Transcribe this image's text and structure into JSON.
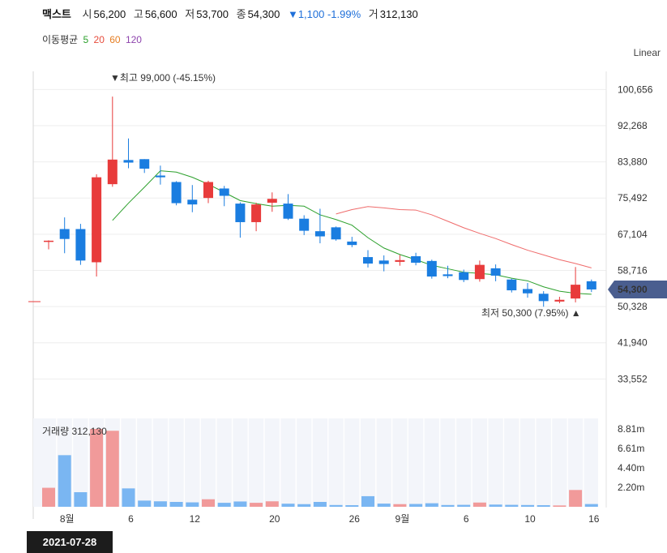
{
  "header": {
    "name": "맥스트",
    "open_label": "시",
    "open": "56,200",
    "high_label": "고",
    "high": "56,600",
    "low_label": "저",
    "low": "53,700",
    "close_label": "종",
    "close": "54,300",
    "change": "▼1,100 -1.99%",
    "volume_label": "거",
    "volume": "312,130"
  },
  "ma_legend": {
    "label": "이동평균",
    "items": [
      {
        "text": "5",
        "color": "#2ca02c"
      },
      {
        "text": "20",
        "color": "#e74c3c"
      },
      {
        "text": "60",
        "color": "#e67e22"
      },
      {
        "text": "120",
        "color": "#8e44ad"
      }
    ]
  },
  "scale_label": "Linear",
  "date_box": "2021-07-28",
  "colors": {
    "up": "#e83b3b",
    "down": "#1a7de0",
    "ma5": "#2ca02c",
    "ma20": "#ef6b6b",
    "vol_up": "#f19a9a",
    "vol_down": "#7ab6f2",
    "price_tag": "#4a5e8f"
  },
  "chart_data": {
    "type": "candlestick",
    "y_ticks": [
      "100,656",
      "92,268",
      "83,880",
      "75,492",
      "67,104",
      "58,716",
      "50,328",
      "41,940",
      "33,552"
    ],
    "y_range": [
      25164,
      104850
    ],
    "x_tick_labels": [
      "8월",
      "6",
      "12",
      "20",
      "26",
      "9월",
      "6",
      "10",
      "16"
    ],
    "x_tick_index": [
      1,
      5,
      9,
      14,
      19,
      22,
      26,
      30,
      34
    ],
    "current_price_label": "54,300",
    "current_price": 54300,
    "high_annotation": "▼최고 99,000 (-45.15%)",
    "low_annotation": "최저 50,300 (7.95%) ▲",
    "volume_title": "거래량",
    "volume_value": "312,130",
    "volume_ticks": [
      "8.81m",
      "6.61m",
      "4.40m",
      "2.20m"
    ],
    "volume_tick_values": [
      8.81,
      6.61,
      4.4,
      2.2
    ],
    "volume_max": 10.0,
    "candles": [
      {
        "o": 65600,
        "h": 65700,
        "l": 63600,
        "c": 65600,
        "v": 2.15
      },
      {
        "o": 68300,
        "h": 71000,
        "l": 62700,
        "c": 66000,
        "v": 5.84
      },
      {
        "o": 68300,
        "h": 69500,
        "l": 60000,
        "c": 61000,
        "v": 1.65
      },
      {
        "o": 60600,
        "h": 81000,
        "l": 57300,
        "c": 80300,
        "v": 8.81
      },
      {
        "o": 78700,
        "h": 99000,
        "l": 78100,
        "c": 84400,
        "v": 8.6
      },
      {
        "o": 84300,
        "h": 89300,
        "l": 82400,
        "c": 83700,
        "v": 2.08
      },
      {
        "o": 84500,
        "h": 84500,
        "l": 81300,
        "c": 82300,
        "v": 0.7
      },
      {
        "o": 80700,
        "h": 83000,
        "l": 78600,
        "c": 80300,
        "v": 0.62
      },
      {
        "o": 79200,
        "h": 79400,
        "l": 73800,
        "c": 74300,
        "v": 0.55
      },
      {
        "o": 75100,
        "h": 78500,
        "l": 72200,
        "c": 74000,
        "v": 0.5
      },
      {
        "o": 75500,
        "h": 79500,
        "l": 74300,
        "c": 79200,
        "v": 0.85
      },
      {
        "o": 77700,
        "h": 78300,
        "l": 73600,
        "c": 76000,
        "v": 0.45
      },
      {
        "o": 74200,
        "h": 74500,
        "l": 66300,
        "c": 69900,
        "v": 0.6
      },
      {
        "o": 69900,
        "h": 74400,
        "l": 67800,
        "c": 74000,
        "v": 0.45
      },
      {
        "o": 74400,
        "h": 76800,
        "l": 72300,
        "c": 75300,
        "v": 0.62
      },
      {
        "o": 74200,
        "h": 76400,
        "l": 70400,
        "c": 70700,
        "v": 0.35
      },
      {
        "o": 70700,
        "h": 71500,
        "l": 66900,
        "c": 67900,
        "v": 0.3
      },
      {
        "o": 67800,
        "h": 73000,
        "l": 65000,
        "c": 66600,
        "v": 0.55
      },
      {
        "o": 68700,
        "h": 68900,
        "l": 65600,
        "c": 65900,
        "v": 0.2
      },
      {
        "o": 65400,
        "h": 66500,
        "l": 64100,
        "c": 64600,
        "v": 0.18
      },
      {
        "o": 61800,
        "h": 63400,
        "l": 59400,
        "c": 60300,
        "v": 1.2
      },
      {
        "o": 61000,
        "h": 62200,
        "l": 58500,
        "c": 60200,
        "v": 0.36
      },
      {
        "o": 60700,
        "h": 62300,
        "l": 59800,
        "c": 61100,
        "v": 0.3
      },
      {
        "o": 62000,
        "h": 62800,
        "l": 59900,
        "c": 60500,
        "v": 0.32
      },
      {
        "o": 60900,
        "h": 61200,
        "l": 56800,
        "c": 57300,
        "v": 0.4
      },
      {
        "o": 57800,
        "h": 59800,
        "l": 56900,
        "c": 57400,
        "v": 0.2
      },
      {
        "o": 58300,
        "h": 58900,
        "l": 56000,
        "c": 56500,
        "v": 0.22
      },
      {
        "o": 56700,
        "h": 61000,
        "l": 56100,
        "c": 60000,
        "v": 0.48
      },
      {
        "o": 59200,
        "h": 60100,
        "l": 56200,
        "c": 57500,
        "v": 0.25
      },
      {
        "o": 56600,
        "h": 56800,
        "l": 53600,
        "c": 54100,
        "v": 0.22
      },
      {
        "o": 54400,
        "h": 55800,
        "l": 52400,
        "c": 53400,
        "v": 0.2
      },
      {
        "o": 53300,
        "h": 53900,
        "l": 50300,
        "c": 51600,
        "v": 0.18
      },
      {
        "o": 51500,
        "h": 52600,
        "l": 51100,
        "c": 51900,
        "v": 0.15
      },
      {
        "o": 52200,
        "h": 59500,
        "l": 51300,
        "c": 55400,
        "v": 1.9
      },
      {
        "o": 56200,
        "h": 56600,
        "l": 53700,
        "c": 54300,
        "v": 0.31
      }
    ],
    "ma5": [
      null,
      null,
      null,
      null,
      70300,
      74300,
      78000,
      81800,
      81500,
      80300,
      78700,
      76800,
      74900,
      74200,
      73600,
      73800,
      73600,
      71600,
      70500,
      69200,
      66300,
      63900,
      62400,
      61200,
      59900,
      59100,
      58300,
      58000,
      57700,
      56900,
      56300,
      54900,
      53900,
      53400,
      53200
    ],
    "ma20": [
      null,
      null,
      null,
      null,
      null,
      null,
      null,
      null,
      null,
      null,
      null,
      null,
      null,
      null,
      null,
      null,
      null,
      null,
      71800,
      72800,
      73500,
      73200,
      72800,
      72700,
      71600,
      70100,
      68600,
      67300,
      66100,
      64700,
      63400,
      62300,
      61200,
      60300,
      59300
    ]
  }
}
